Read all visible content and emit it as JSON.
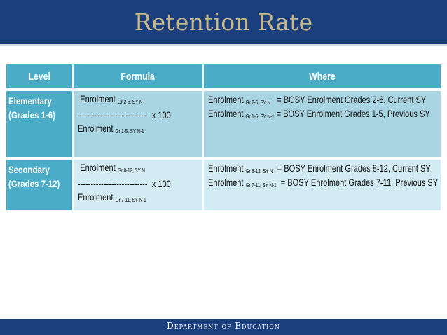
{
  "slide": {
    "title": "Retention Rate",
    "footer": "Department of Education"
  },
  "table": {
    "headers": {
      "level": "Level",
      "formula": "Formula",
      "where": "Where"
    },
    "rows": [
      {
        "level_line1": "Elementary",
        "level_line2": "(Grades 1-6)",
        "formula": {
          "numerator": "Enrolment",
          "numerator_sub": "Gr 2-6, SY N",
          "divider": "---------------------------",
          "multiplier": "x  100",
          "denominator": "Enrolment",
          "denominator_sub": "Gr 1-5, SY N-1"
        },
        "where": [
          {
            "term": "Enrolment",
            "sub": "Gr 2-6, SY N",
            "definition": "= BOSY Enrolment Grades 2-6, Current SY"
          },
          {
            "term": "Enrolment",
            "sub": "Gr 1-5, SY N-1",
            "definition": "= BOSY Enrolment Grades 1-5, Previous SY"
          }
        ]
      },
      {
        "level_line1": "Secondary",
        "level_line2": "(Grades 7-12)",
        "formula": {
          "numerator": "Enrolment",
          "numerator_sub": "Gr 8-12, SY N",
          "divider": "---------------------------",
          "multiplier": "x  100",
          "denominator": "Enrolment",
          "denominator_sub": "Gr 7-11, SY N-1"
        },
        "where": [
          {
            "term": "Enrolment",
            "sub": "Gr 8-12, SY N",
            "definition": "= BOSY Enrolment Grades 8-12, Current SY"
          },
          {
            "term": "Enrolment",
            "sub": "Gr 7-11, SY N-1",
            "definition": "= BOSY Enrolment Grades 7-11, Previous SY"
          }
        ]
      }
    ]
  },
  "colors": {
    "header_band": "#1b3f7c",
    "title_text": "#c9b889",
    "table_header": "#4aacc6",
    "row1_fill": "#a9d4e2",
    "row2_fill": "#d3ebf2"
  }
}
